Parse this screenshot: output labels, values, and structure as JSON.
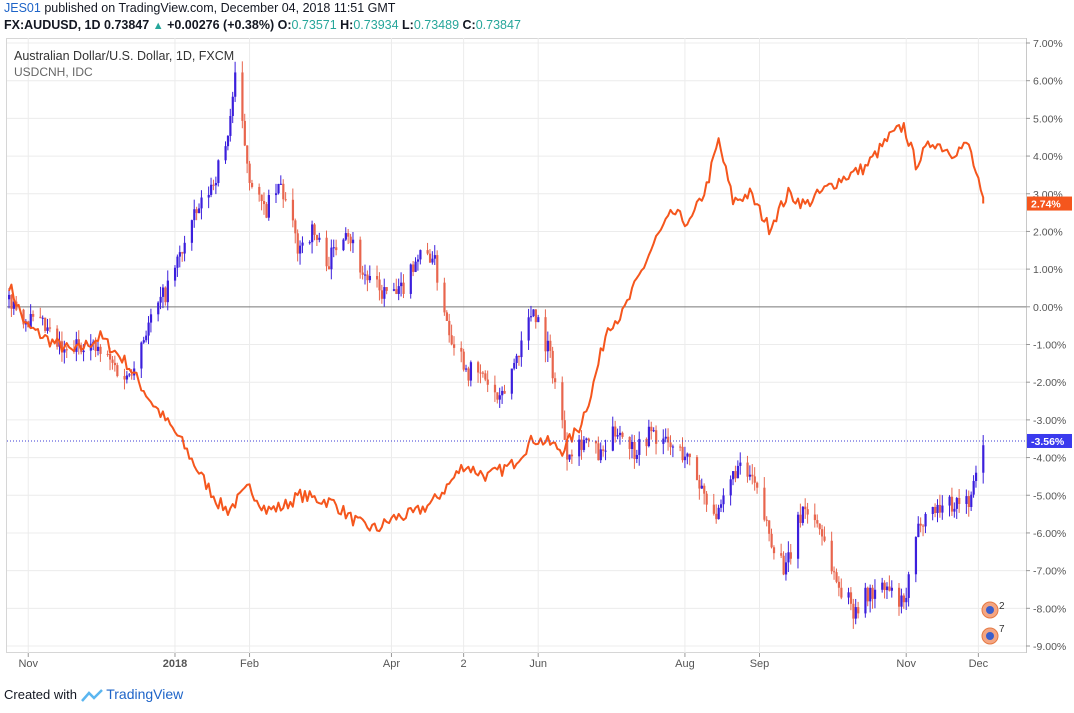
{
  "header": {
    "author": "JES01",
    "published_text": " published on TradingView.com, December 04, 2018 11:51 GMT",
    "symbol": "FX:AUDUSD, 1D",
    "last": "0.73847",
    "change": "+0.00276 (+0.38%)",
    "o_label": "O:",
    "o_value": "0.73571",
    "h_label": "H:",
    "h_value": "0.73934",
    "l_label": "L:",
    "l_value": "0.73489",
    "c_label": "C:",
    "c_value": "0.73847"
  },
  "legend": {
    "main": "Australian Dollar/U.S. Dollar, 1D, FXCM",
    "compare": "USDCNH, IDC"
  },
  "badges": {
    "count_a": "2",
    "count_b": "7"
  },
  "footer": {
    "created_with": "Created with",
    "brand": "TradingView"
  },
  "colors": {
    "up": "#3b1fdc",
    "down": "#e8654d",
    "line": "#f5561d",
    "axis_text": "#555555",
    "grid": "#ececec",
    "zero_line": "#7a7a7a",
    "crosshair": "#3b3bd6",
    "label_aud_bg": "#3a3aee",
    "label_cnh_bg": "#f5561d"
  },
  "chart_data": {
    "type": "line",
    "y_unit": "%",
    "ylim": [
      -9.0,
      7.0
    ],
    "y_ticks": [
      "7.00%",
      "6.00%",
      "5.00%",
      "4.00%",
      "3.00%",
      "2.00%",
      "1.00%",
      "0.00%",
      "-1.00%",
      "-2.00%",
      "-3.00%",
      "-4.00%",
      "-5.00%",
      "-6.00%",
      "-7.00%",
      "-8.00%",
      "-9.00%"
    ],
    "x_ticks": [
      "Nov",
      "2018",
      "Feb",
      "Apr",
      "2",
      "Jun",
      "Aug",
      "Sep",
      "Nov",
      "Dec"
    ],
    "last_labels": {
      "aud": "-3.56%",
      "cnh": "2.74%"
    },
    "series": [
      {
        "name": "USDCNH, IDC",
        "style": "line",
        "x": [
          "2017-10-24",
          "2017-10-31",
          "2017-11-10",
          "2017-11-20",
          "2017-12-01",
          "2017-12-12",
          "2017-12-22",
          "2018-01-03",
          "2018-01-12",
          "2018-01-19",
          "2018-01-23",
          "2018-02-01",
          "2018-02-08",
          "2018-02-15",
          "2018-02-22",
          "2018-03-01",
          "2018-03-08",
          "2018-03-15",
          "2018-03-20",
          "2018-03-26",
          "2018-04-02",
          "2018-04-10",
          "2018-04-18",
          "2018-04-25",
          "2018-05-01",
          "2018-05-11",
          "2018-05-21",
          "2018-05-30",
          "2018-06-05",
          "2018-06-11",
          "2018-06-18",
          "2018-06-23",
          "2018-06-30",
          "2018-07-06",
          "2018-07-13",
          "2018-07-20",
          "2018-07-27",
          "2018-08-03",
          "2018-08-10",
          "2018-08-15",
          "2018-08-21",
          "2018-08-28",
          "2018-09-05",
          "2018-09-13",
          "2018-09-20",
          "2018-09-28",
          "2018-10-05",
          "2018-10-15",
          "2018-10-25",
          "2018-10-31",
          "2018-11-05",
          "2018-11-12",
          "2018-11-20",
          "2018-11-27",
          "2018-12-03"
        ],
        "y": [
          0.6,
          -0.5,
          -0.9,
          -1.2,
          -0.8,
          -1.5,
          -2.5,
          -3.5,
          -4.5,
          -5.2,
          -5.4,
          -4.8,
          -5.4,
          -5.3,
          -5.0,
          -5.1,
          -5.2,
          -5.6,
          -5.8,
          -5.9,
          -5.6,
          -5.5,
          -5.2,
          -4.7,
          -4.2,
          -4.5,
          -4.2,
          -3.5,
          -3.6,
          -3.8,
          -3.2,
          -2.3,
          -0.5,
          -0.2,
          0.8,
          1.8,
          2.5,
          2.2,
          3.2,
          4.4,
          2.8,
          3.0,
          2.1,
          3.0,
          2.7,
          3.1,
          3.4,
          3.7,
          4.5,
          4.8,
          3.8,
          4.4,
          4.1,
          4.3,
          2.74
        ]
      },
      {
        "name": "Australian Dollar/U.S. Dollar, 1D, FXCM",
        "style": "candles",
        "x": [
          "2017-10-24",
          "2017-10-31",
          "2017-11-08",
          "2017-11-16",
          "2017-11-24",
          "2017-12-04",
          "2017-12-12",
          "2017-12-20",
          "2017-12-29",
          "2018-01-08",
          "2018-01-16",
          "2018-01-22",
          "2018-01-26",
          "2018-02-01",
          "2018-02-07",
          "2018-02-14",
          "2018-02-21",
          "2018-02-27",
          "2018-03-06",
          "2018-03-13",
          "2018-03-20",
          "2018-03-27",
          "2018-04-04",
          "2018-04-11",
          "2018-04-18",
          "2018-04-25",
          "2018-05-03",
          "2018-05-10",
          "2018-05-16",
          "2018-05-23",
          "2018-05-30",
          "2018-06-06",
          "2018-06-13",
          "2018-06-20",
          "2018-06-27",
          "2018-07-04",
          "2018-07-11",
          "2018-07-18",
          "2018-07-25",
          "2018-08-01",
          "2018-08-08",
          "2018-08-15",
          "2018-08-22",
          "2018-08-29",
          "2018-09-05",
          "2018-09-12",
          "2018-09-19",
          "2018-09-26",
          "2018-10-03",
          "2018-10-10",
          "2018-10-17",
          "2018-10-24",
          "2018-10-31",
          "2018-11-07",
          "2018-11-14",
          "2018-11-21",
          "2018-11-28",
          "2018-12-03"
        ],
        "y": [
          0.2,
          -0.3,
          -0.6,
          -1.3,
          -0.9,
          -1.4,
          -1.9,
          -0.6,
          0.5,
          2.2,
          3.2,
          4.2,
          6.0,
          3.5,
          2.5,
          3.2,
          1.6,
          2.0,
          1.2,
          2.2,
          0.9,
          0.4,
          0.3,
          1.3,
          1.4,
          -0.6,
          -1.7,
          -1.9,
          -2.6,
          -1.3,
          0.0,
          -1.3,
          -3.8,
          -3.5,
          -4.0,
          -3.2,
          -3.8,
          -3.3,
          -3.7,
          -3.9,
          -4.8,
          -5.6,
          -4.3,
          -4.6,
          -6.0,
          -7.0,
          -5.3,
          -5.8,
          -7.3,
          -8.0,
          -7.6,
          -7.5,
          -8.0,
          -5.6,
          -5.3,
          -5.2,
          -5.1,
          -3.56
        ]
      }
    ]
  }
}
